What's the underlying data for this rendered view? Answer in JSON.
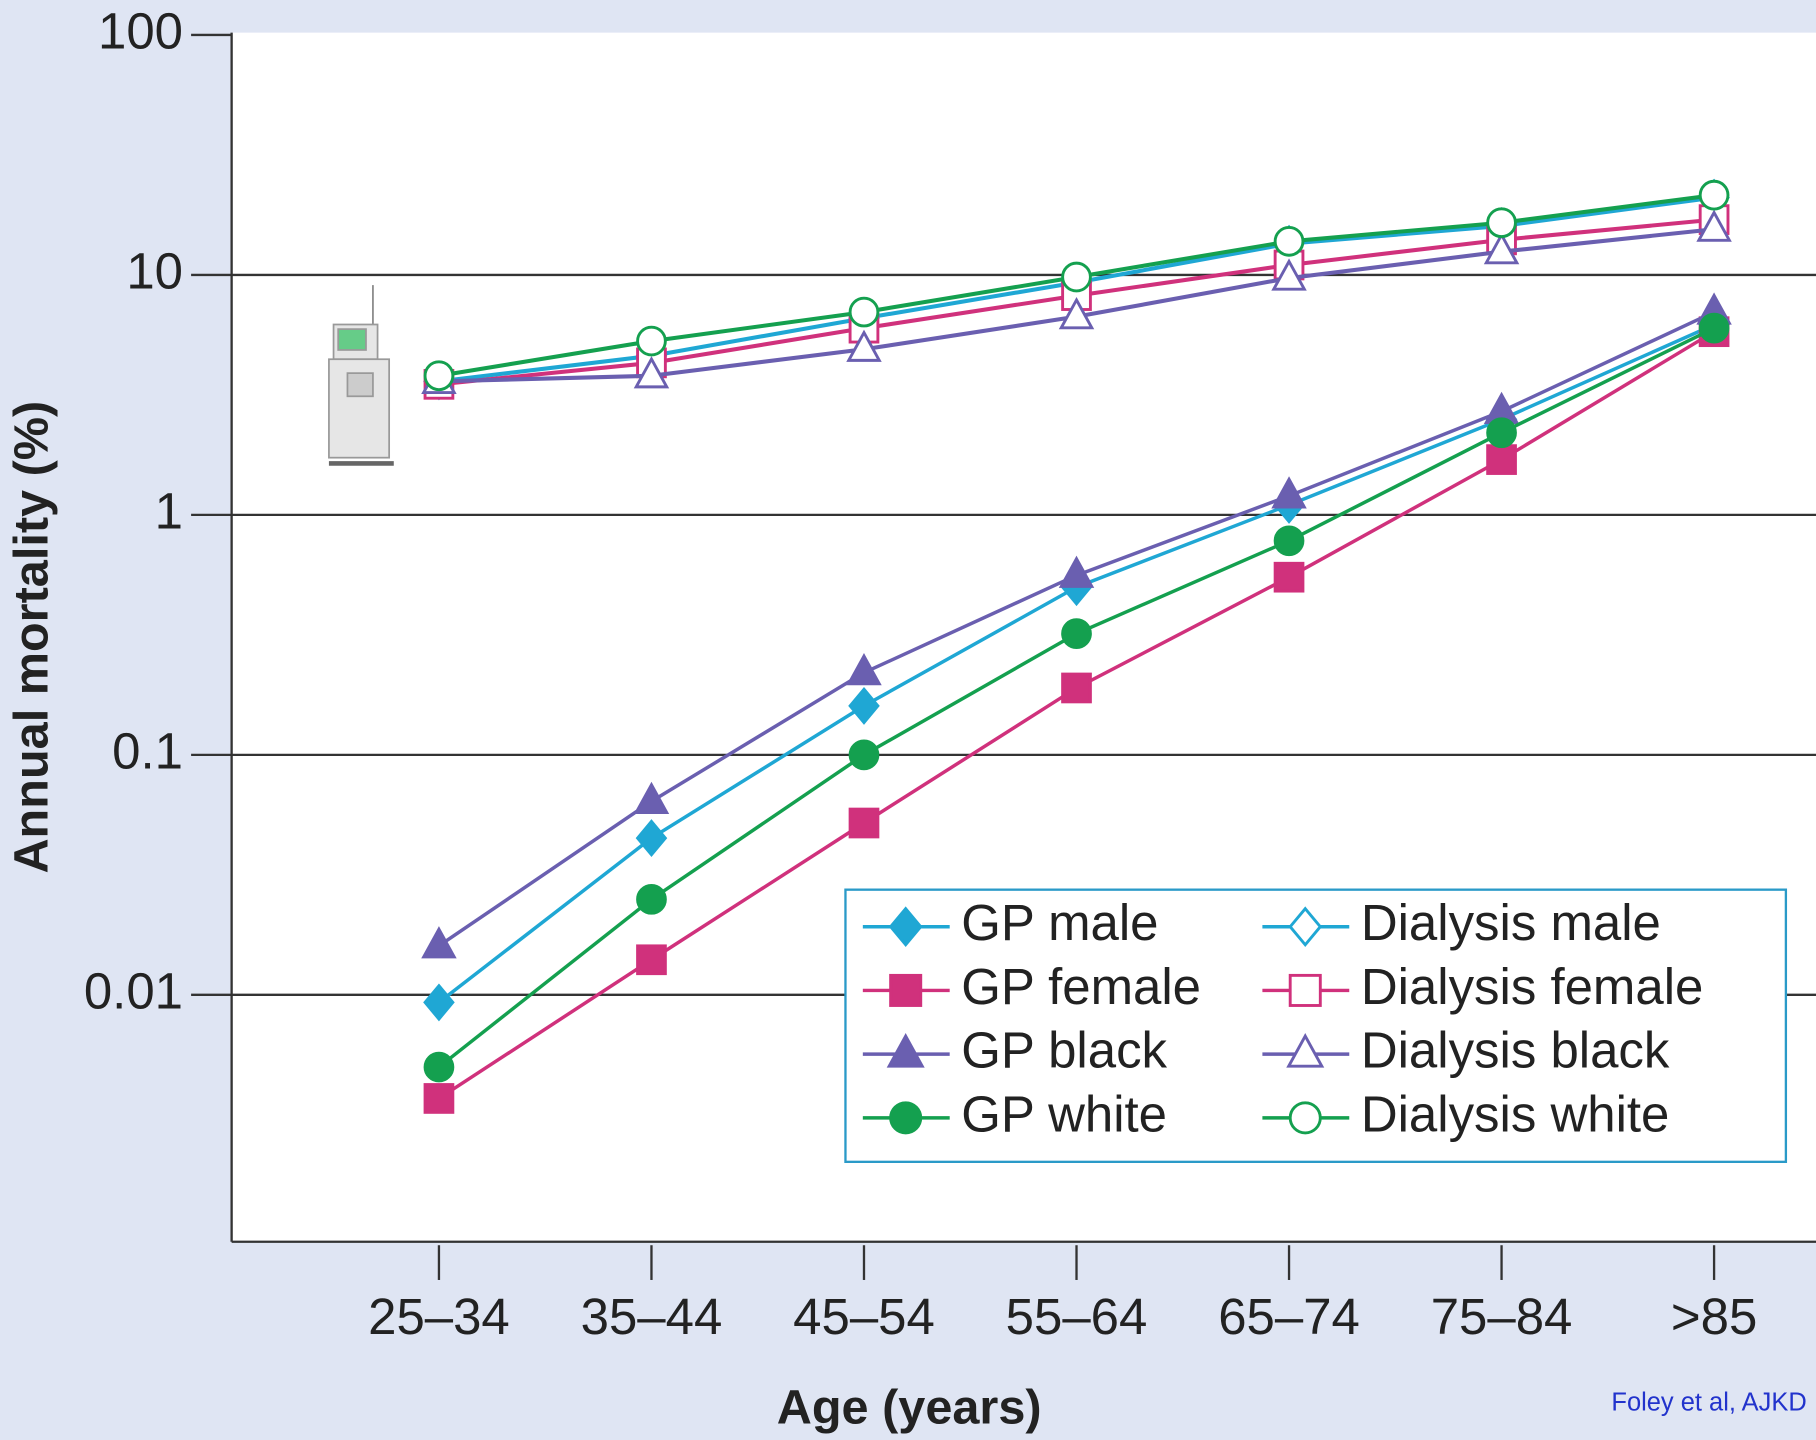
{
  "chart_data": {
    "type": "line",
    "x_label": "Age (years)",
    "y_label": "Annual mortality (%)",
    "source": "Foley et al, AJKD",
    "categories": [
      "25–34",
      "35–44",
      "45–54",
      "55–64",
      "65–74",
      "75–84",
      ">85"
    ],
    "ylim": [
      0.001,
      100
    ],
    "yticks": [
      100,
      10,
      1,
      0.1,
      0.01
    ],
    "log_scale": true,
    "grid": true,
    "series": [
      {
        "name": "GP male",
        "color": "#1fa7d4",
        "marker": "diamond",
        "filled": true,
        "values": [
          0.0093,
          0.045,
          0.16,
          0.5,
          1.1,
          2.5,
          6.2
        ]
      },
      {
        "name": "GP female",
        "color": "#d0317c",
        "marker": "square",
        "filled": true,
        "values": [
          0.0037,
          0.014,
          0.052,
          0.19,
          0.55,
          1.7,
          5.8
        ]
      },
      {
        "name": "GP black",
        "color": "#6a5fb0",
        "marker": "triangle",
        "filled": true,
        "values": [
          0.016,
          0.064,
          0.22,
          0.56,
          1.2,
          2.7,
          7.0
        ]
      },
      {
        "name": "GP white",
        "color": "#14a04f",
        "marker": "circle",
        "filled": true,
        "values": [
          0.005,
          0.025,
          0.1,
          0.32,
          0.78,
          2.2,
          6.0
        ]
      },
      {
        "name": "Dialysis male",
        "color": "#1fa7d4",
        "marker": "diamond",
        "filled": false,
        "values": [
          3.6,
          4.6,
          6.6,
          9.3,
          13.5,
          16,
          21
        ]
      },
      {
        "name": "Dialysis female",
        "color": "#d0317c",
        "marker": "square",
        "filled": false,
        "values": [
          3.5,
          4.3,
          6.0,
          8.2,
          11,
          14,
          17
        ]
      },
      {
        "name": "Dialysis black",
        "color": "#6a5fb0",
        "marker": "triangle",
        "filled": false,
        "values": [
          3.6,
          3.8,
          4.9,
          6.7,
          9.7,
          12.5,
          15.5
        ]
      },
      {
        "name": "Dialysis white",
        "color": "#14a04f",
        "marker": "circle",
        "filled": false,
        "values": [
          3.8,
          5.3,
          7.0,
          9.8,
          13.8,
          16.5,
          21.5
        ]
      }
    ]
  }
}
